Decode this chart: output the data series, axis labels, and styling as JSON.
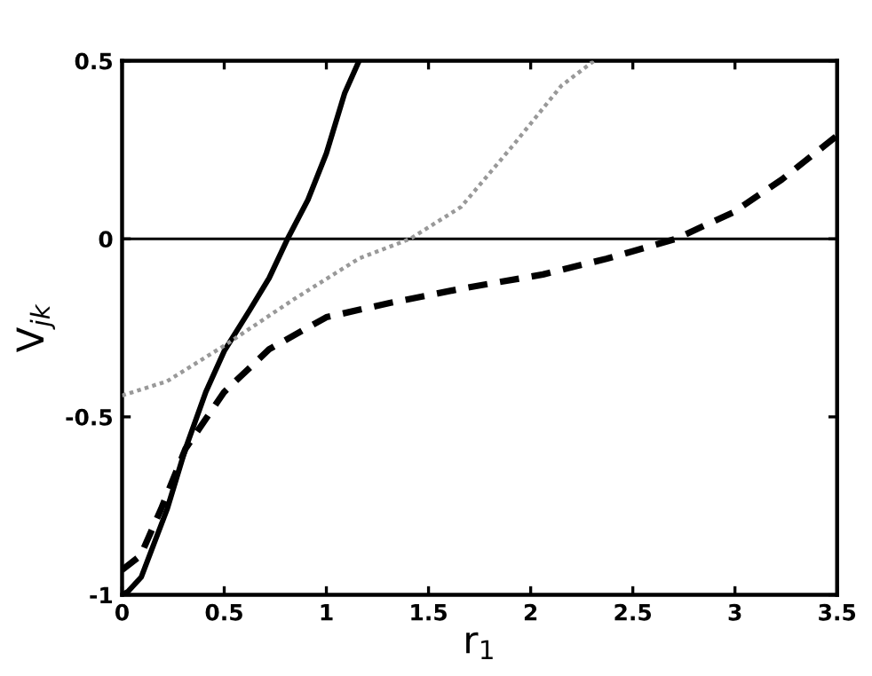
{
  "chart_data": {
    "type": "line",
    "xlabel": "r$_{1}$",
    "ylabel": "V$_{jk}$",
    "xlim": [
      0,
      3.5
    ],
    "ylim": [
      -1,
      0.5
    ],
    "xticks": [
      0,
      0.5,
      1,
      1.5,
      2,
      2.5,
      3,
      3.5
    ],
    "yticks": [
      -1,
      -0.5,
      0,
      0.5
    ],
    "grid": false,
    "legend": false,
    "ref_lines": [
      {
        "axis": "y",
        "value": 0,
        "color": "#000000",
        "line_style": "solid"
      }
    ],
    "series": [
      {
        "color": "#000000",
        "line_style": "solid",
        "x": [
          0,
          0.03,
          0.094,
          0.22,
          0.31,
          0.41,
          0.5,
          0.625,
          0.72,
          0.81,
          0.91,
          1.0,
          1.09,
          1.16
        ],
        "values": [
          -1,
          -0.99,
          -0.95,
          -0.76,
          -0.59,
          -0.43,
          -0.315,
          -0.2,
          -0.11,
          0,
          0.11,
          0.24,
          0.41,
          0.5
        ]
      },
      {
        "color": "#999999",
        "line_style": "dotted",
        "x": [
          0,
          0.22,
          0.5,
          0.84,
          1.16,
          1.41,
          1.66,
          1.91,
          2.15,
          2.31
        ],
        "values": [
          -0.44,
          -0.4,
          -0.3,
          -0.17,
          -0.055,
          0,
          0.09,
          0.26,
          0.43,
          0.5
        ]
      },
      {
        "color": "#000000",
        "line_style": "dashed",
        "x": [
          0,
          0.09,
          0.19,
          0.31,
          0.5,
          0.72,
          1.0,
          1.31,
          1.66,
          2.06,
          2.37,
          2.71,
          2.99,
          3.23,
          3.5
        ],
        "values": [
          -0.93,
          -0.89,
          -0.76,
          -0.59,
          -0.43,
          -0.31,
          -0.22,
          -0.18,
          -0.14,
          -0.1,
          -0.056,
          0,
          0.074,
          0.167,
          0.29
        ]
      }
    ]
  }
}
